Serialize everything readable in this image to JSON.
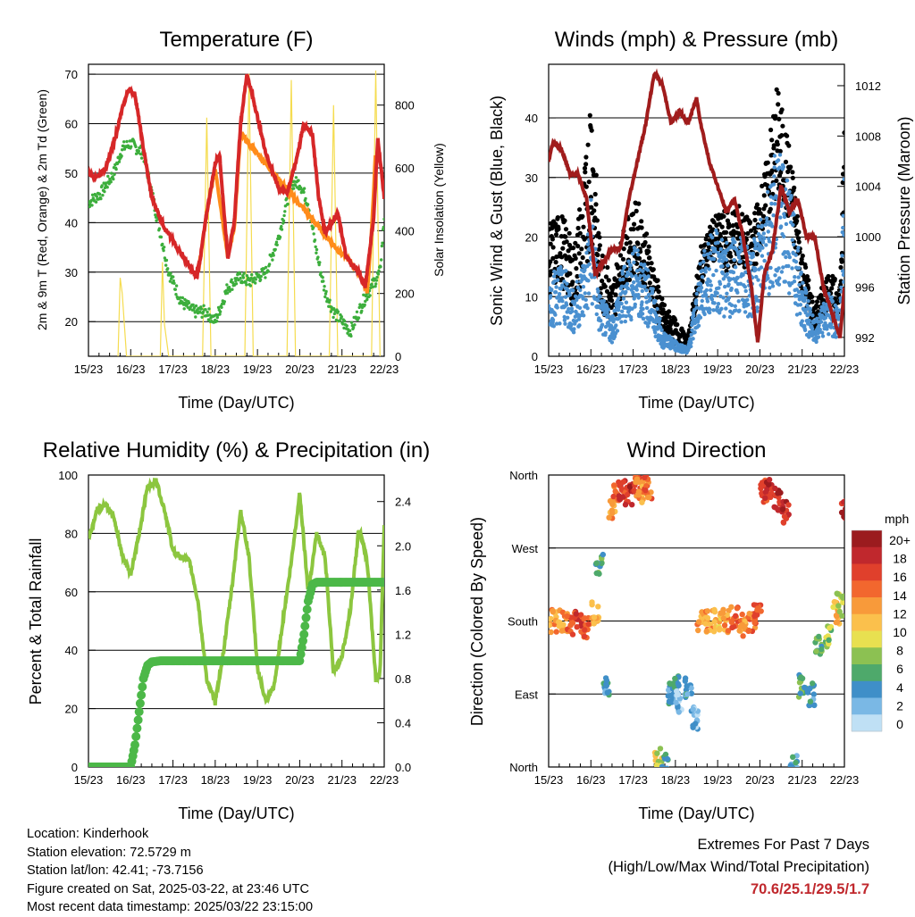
{
  "x_ticks": [
    "15/23",
    "16/23",
    "17/23",
    "18/23",
    "19/23",
    "20/23",
    "21/23",
    "22/23"
  ],
  "xlabel": "Time (Day/UTC)",
  "panels": {
    "temperature": {
      "title": "Temperature (F)",
      "ylabel_left": "2m & 9m T (Red, Orange) & 2m Td (Green)",
      "ylabel_right": "Solar Insolation (Yellow)",
      "left_ticks": [
        "20",
        "30",
        "40",
        "50",
        "60",
        "70"
      ],
      "right_ticks": [
        "0",
        "200",
        "400",
        "600",
        "800"
      ]
    },
    "winds": {
      "title": "Winds (mph) & Pressure (mb)",
      "ylabel_left": "Sonic Wind & Gust (Blue, Black)",
      "ylabel_right": "Station Pressure (Maroon)",
      "left_ticks": [
        "0",
        "10",
        "20",
        "30",
        "40"
      ],
      "right_ticks": [
        "992",
        "996",
        "1000",
        "1004",
        "1008",
        "1012"
      ]
    },
    "humidity": {
      "title": "Relative Humidity (%) & Precipitation (in)",
      "ylabel_left": "Percent & Total Rainfall",
      "left_ticks": [
        "0",
        "20",
        "40",
        "60",
        "80",
        "100"
      ],
      "right_ticks": [
        "0.0",
        "0.4",
        "0.8",
        "1.2",
        "1.6",
        "2.0",
        "2.4"
      ]
    },
    "wind_direction": {
      "title": "Wind Direction",
      "ylabel_left": "Direction (Colored By Speed)",
      "left_ticks": [
        "North",
        "East",
        "South",
        "West",
        "North"
      ],
      "colorbar_title": "mph",
      "colorbar_labels": [
        "20+",
        "18",
        "16",
        "14",
        "12",
        "10",
        "8",
        "6",
        "4",
        "2",
        "0"
      ],
      "colorbar_colors": [
        "#9b1b1e",
        "#c0282d",
        "#e0402c",
        "#f2672e",
        "#f89a3a",
        "#fbc04c",
        "#e8e050",
        "#8cc152",
        "#4ea96b",
        "#3f8fc8",
        "#7ab8e5",
        "#bfe0f5"
      ]
    }
  },
  "colors": {
    "temp_2m": "#d62728",
    "temp_9m": "#ff8c1a",
    "dewpoint": "#3cae3c",
    "insolation": "#f5dc50",
    "wind": "#4a90d0",
    "gust": "#000000",
    "pressure": "#a01c1c",
    "rh": "#8cc63f",
    "precip": "#4cb848"
  },
  "chart_data": [
    {
      "type": "line",
      "title": "Temperature (F)",
      "xlabel": "Time (Day/UTC)",
      "ylabel": "2m & 9m T (Red, Orange) & 2m Td (Green)",
      "y2label": "Solar Insolation (Yellow)",
      "xlim": [
        0,
        7
      ],
      "ylim": [
        13,
        72
      ],
      "y2lim": [
        0,
        930
      ],
      "series": [
        {
          "name": "2m T",
          "axis": "left",
          "x": [
            0,
            0.2,
            0.4,
            0.6,
            0.8,
            0.95,
            1.1,
            1.3,
            1.5,
            1.8,
            2.1,
            2.4,
            2.55,
            2.65,
            2.8,
            3.0,
            3.1,
            3.2,
            3.3,
            3.45,
            3.6,
            3.75,
            3.9,
            4.2,
            4.5,
            4.7,
            4.9,
            5.1,
            5.3,
            5.45,
            5.6,
            5.9,
            6.1,
            6.4,
            6.55,
            6.75,
            6.85,
            7.0
          ],
          "y": [
            50,
            49,
            51,
            56,
            63,
            67,
            66,
            55,
            45,
            39,
            35,
            31,
            29,
            33,
            42,
            52,
            54,
            43,
            33,
            40,
            60,
            70,
            65,
            54,
            47,
            46,
            52,
            60,
            58,
            45,
            38,
            42,
            33,
            30,
            27,
            41,
            57,
            45
          ]
        },
        {
          "name": "9m T",
          "axis": "left",
          "x": [
            2.6,
            2.8,
            3.0,
            3.3,
            3.45,
            3.6,
            5.95,
            6.1,
            6.4,
            6.6,
            6.7,
            6.8
          ],
          "y": [
            30,
            42,
            51,
            33,
            39,
            58,
            34,
            33,
            30,
            26,
            38,
            55
          ]
        },
        {
          "name": "2m Td",
          "axis": "left",
          "x": [
            0,
            0.3,
            0.6,
            0.8,
            1.0,
            1.3,
            1.6,
            1.9,
            2.2,
            2.5,
            2.8,
            3.0,
            3.3,
            3.6,
            3.8,
            4.2,
            4.5,
            4.8,
            5.0,
            5.2,
            5.4,
            5.6,
            5.8,
            6.0,
            6.2,
            6.5,
            6.7,
            6.9,
            7.0
          ],
          "y": [
            44,
            46,
            50,
            55,
            56,
            54,
            42,
            30,
            24,
            22,
            22,
            20,
            27,
            29,
            28,
            30,
            37,
            48,
            48,
            44,
            34,
            26,
            22,
            20,
            18,
            24,
            27,
            30,
            41
          ]
        },
        {
          "name": "Solar Insolation",
          "axis": "right",
          "x": [
            0.7,
            0.75,
            0.8,
            0.85,
            0.9,
            1.7,
            1.75,
            1.8,
            1.9,
            2.7,
            2.8,
            2.9,
            3.7,
            3.8,
            3.9,
            4.7,
            4.8,
            4.9,
            5.7,
            5.8,
            5.9,
            6.7,
            6.8,
            6.9
          ],
          "y": [
            0,
            250,
            200,
            100,
            0,
            0,
            300,
            100,
            0,
            0,
            760,
            0,
            0,
            900,
            0,
            0,
            880,
            0,
            0,
            800,
            0,
            0,
            910,
            0
          ]
        }
      ]
    },
    {
      "type": "line",
      "title": "Winds (mph) & Pressure (mb)",
      "xlabel": "Time (Day/UTC)",
      "ylabel": "Sonic Wind & Gust (Blue, Black)",
      "y2label": "Station Pressure (Maroon)",
      "xlim": [
        0,
        7
      ],
      "ylim": [
        0,
        49
      ],
      "y2lim": [
        990.5,
        1013.7
      ],
      "series": [
        {
          "name": "Pressure",
          "axis": "right",
          "x": [
            0,
            0.1,
            0.3,
            0.5,
            0.7,
            0.9,
            1.0,
            1.1,
            1.3,
            1.5,
            1.7,
            1.9,
            2.1,
            2.3,
            2.5,
            2.7,
            2.9,
            3.1,
            3.3,
            3.5,
            3.6,
            3.8,
            4.0,
            4.2,
            4.4,
            4.6,
            4.8,
            4.95,
            5.1,
            5.3,
            5.5,
            5.7,
            5.9,
            6.1,
            6.3,
            6.5,
            6.7,
            6.9,
            7.0
          ],
          "y": [
            1006,
            1007.5,
            1007,
            1005,
            1005,
            1003,
            1000,
            997,
            998,
            999,
            999,
            1003,
            1006,
            1009,
            1013,
            1012,
            1009,
            1010,
            1009,
            1011,
            1009,
            1006,
            1004,
            1002,
            1003,
            1000,
            996,
            991.5,
            997,
            999,
            1004,
            1002,
            1003,
            1000,
            1000,
            996,
            994,
            992,
            996
          ]
        },
        {
          "name": "Wind",
          "axis": "left",
          "x": [
            0,
            0.3,
            0.6,
            0.9,
            1.0,
            1.2,
            1.5,
            1.8,
            2.1,
            2.4,
            2.7,
            3.0,
            3.3,
            3.6,
            3.9,
            4.2,
            4.5,
            4.8,
            5.1,
            5.4,
            5.7,
            6.0,
            6.3,
            6.6,
            6.9,
            7.0
          ],
          "y": [
            10,
            12,
            8,
            14,
            20,
            8,
            5,
            12,
            14,
            10,
            3,
            2,
            1,
            12,
            16,
            14,
            15,
            13,
            20,
            26,
            22,
            10,
            4,
            8,
            6,
            24
          ]
        },
        {
          "name": "Gust",
          "axis": "left",
          "x": [
            0,
            0.3,
            0.6,
            0.9,
            1.0,
            1.2,
            1.5,
            1.8,
            2.1,
            2.4,
            2.7,
            3.0,
            3.3,
            3.6,
            3.9,
            4.2,
            4.5,
            4.8,
            5.1,
            5.4,
            5.7,
            6.0,
            6.3,
            6.6,
            6.9,
            7.0
          ],
          "y": [
            22,
            24,
            18,
            34,
            47,
            20,
            12,
            22,
            26,
            18,
            9,
            6,
            3,
            18,
            23,
            24,
            25,
            22,
            30,
            45,
            35,
            18,
            8,
            14,
            12,
            40
          ]
        }
      ]
    },
    {
      "type": "line",
      "title": "Relative Humidity (%) & Precipitation (in)",
      "xlabel": "Time (Day/UTC)",
      "ylabel": "Percent & Total Rainfall",
      "xlim": [
        0,
        7
      ],
      "ylim": [
        0,
        100
      ],
      "y2lim": [
        0,
        2.64
      ],
      "series": [
        {
          "name": "RH",
          "axis": "left",
          "x": [
            0,
            0.2,
            0.4,
            0.6,
            0.8,
            1.0,
            1.2,
            1.4,
            1.6,
            1.8,
            2.0,
            2.2,
            2.4,
            2.6,
            2.8,
            3.0,
            3.2,
            3.4,
            3.6,
            3.8,
            4.0,
            4.2,
            4.4,
            4.6,
            4.8,
            5.0,
            5.2,
            5.4,
            5.6,
            5.8,
            6.0,
            6.2,
            6.4,
            6.6,
            6.8,
            6.9,
            7.0
          ],
          "y": [
            78,
            88,
            90,
            86,
            72,
            66,
            80,
            96,
            98,
            88,
            74,
            72,
            70,
            56,
            30,
            22,
            40,
            62,
            88,
            72,
            34,
            22,
            28,
            50,
            70,
            94,
            60,
            80,
            72,
            32,
            38,
            54,
            82,
            70,
            30,
            32,
            82
          ]
        },
        {
          "name": "Total Precipitation",
          "axis": "right",
          "x": [
            0,
            1.0,
            1.1,
            1.2,
            1.3,
            1.4,
            1.5,
            1.7,
            2.0,
            3.0,
            4.0,
            5.0,
            5.1,
            5.2,
            5.3,
            5.4,
            5.6,
            6.0,
            7.0
          ],
          "y": [
            0,
            0,
            0.2,
            0.5,
            0.8,
            0.92,
            0.95,
            0.96,
            0.96,
            0.96,
            0.96,
            0.96,
            1.2,
            1.5,
            1.65,
            1.67,
            1.67,
            1.67,
            1.67
          ]
        }
      ]
    },
    {
      "type": "scatter",
      "title": "Wind Direction",
      "xlabel": "Time (Day/UTC)",
      "ylabel": "Direction (Colored By Speed)",
      "xlim": [
        0,
        7
      ],
      "ylim": [
        0,
        360
      ],
      "y_ticks": [
        "North",
        "East",
        "South",
        "West",
        "North"
      ],
      "color_key": "mph",
      "series": [
        {
          "name": "Direction",
          "x": [
            0.1,
            0.3,
            0.5,
            0.7,
            0.9,
            1.1,
            1.2,
            1.35,
            1.5,
            1.6,
            1.75,
            1.9,
            2.1,
            2.2,
            2.35,
            2.6,
            2.75,
            2.9,
            3.0,
            3.1,
            3.3,
            3.45,
            3.6,
            3.8,
            4.0,
            4.2,
            4.4,
            4.6,
            4.8,
            4.95,
            5.1,
            5.2,
            5.4,
            5.6,
            5.8,
            6.0,
            6.2,
            6.4,
            6.6,
            6.8,
            6.9,
            7.0
          ],
          "y": [
            180,
            180,
            175,
            180,
            170,
            190,
            250,
            100,
            320,
            340,
            340,
            335,
            345,
            340,
            345,
            10,
            2,
            90,
            100,
            80,
            100,
            60,
            180,
            180,
            180,
            180,
            185,
            175,
            180,
            190,
            340,
            345,
            330,
            315,
            0,
            100,
            90,
            150,
            160,
            190,
            200,
            315
          ],
          "speed": [
            14,
            14,
            16,
            18,
            16,
            14,
            6,
            4,
            14,
            16,
            18,
            20,
            16,
            14,
            16,
            10,
            4,
            4,
            3,
            2,
            3,
            2,
            14,
            14,
            12,
            14,
            16,
            14,
            16,
            18,
            18,
            20,
            20,
            20,
            4,
            6,
            4,
            6,
            8,
            12,
            10,
            20
          ]
        }
      ]
    }
  ],
  "info": {
    "location": "Location: Kinderhook",
    "elevation": "Station elevation: 72.5729 m",
    "latlon": "Station lat/lon: 42.41; -73.7156",
    "created": "Figure created on Sat, 2025-03-22, at 23:46 UTC",
    "timestamp": "Most recent data timestamp: 2025/03/22 23:15:00"
  },
  "extremes": {
    "title": "Extremes For Past 7 Days",
    "subtitle": "(High/Low/Max Wind/Total Precipitation)",
    "values": "70.6/25.1/29.5/1.7"
  }
}
